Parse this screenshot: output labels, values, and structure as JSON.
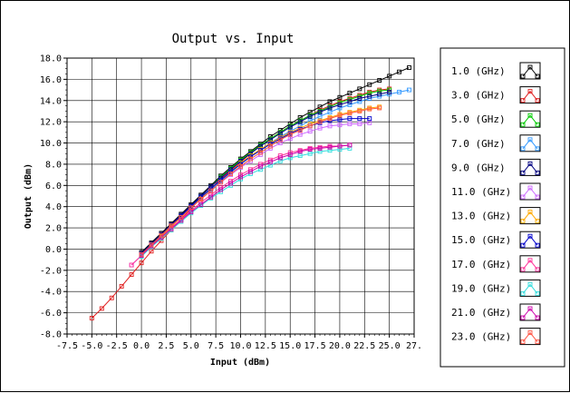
{
  "chart_data": {
    "type": "line",
    "title": "Output vs. Input",
    "xlabel": "Input (dBm)",
    "ylabel": "Output (dBm)",
    "xlim": [
      -7.5,
      27.5
    ],
    "ylim": [
      -8.0,
      18.0
    ],
    "grid": true,
    "legend_position": "right",
    "x_ticks": [
      "-7.5",
      "-5.0",
      "-2.5",
      "0.0",
      "2.5",
      "5.0",
      "7.5",
      "10.0",
      "12.5",
      "15.0",
      "17.5",
      "20.0",
      "22.5",
      "25.0",
      "27."
    ],
    "y_ticks": [
      "18.0",
      "16.0",
      "14.0",
      "12.0",
      "10.0",
      "8.0",
      "6.0",
      "4.0",
      "2.0",
      "0.0",
      "-2.0",
      "-4.0",
      "-6.0",
      "-8.0"
    ],
    "series": [
      {
        "name": "1.0 (GHz)",
        "color": "#000000",
        "x": [
          0,
          1,
          2,
          3,
          4,
          5,
          6,
          7,
          8,
          9,
          10,
          11,
          12,
          13,
          14,
          15,
          16,
          17,
          18,
          19,
          20,
          21,
          22,
          23,
          24,
          25,
          26,
          27
        ],
        "y": [
          -0.3,
          0.6,
          1.5,
          2.4,
          3.3,
          4.2,
          5.1,
          6.0,
          6.9,
          7.7,
          8.5,
          9.2,
          9.9,
          10.6,
          11.2,
          11.8,
          12.4,
          12.9,
          13.4,
          13.9,
          14.3,
          14.7,
          15.1,
          15.5,
          15.9,
          16.3,
          16.7,
          17.1
        ]
      },
      {
        "name": "3.0 (GHz)",
        "color": "#e02020",
        "x": [
          -5,
          -4,
          -3,
          -2,
          -1,
          0,
          1,
          2,
          3,
          4,
          5,
          6,
          7,
          8,
          9,
          10,
          11,
          12,
          13,
          14,
          15,
          16,
          17,
          18,
          19,
          20,
          21,
          22,
          23,
          24,
          25
        ],
        "y": [
          -6.5,
          -5.6,
          -4.6,
          -3.5,
          -2.4,
          -1.3,
          -0.2,
          0.8,
          1.8,
          2.8,
          3.8,
          4.8,
          5.7,
          6.6,
          7.4,
          8.2,
          9.0,
          9.7,
          10.4,
          11.0,
          11.6,
          12.1,
          12.6,
          13.1,
          13.5,
          13.9,
          14.2,
          14.5,
          14.8,
          15.0,
          15.1
        ]
      },
      {
        "name": "5.0 (GHz)",
        "color": "#00cc00",
        "x": [
          0,
          1,
          2,
          3,
          4,
          5,
          6,
          7,
          8,
          9,
          10,
          11,
          12,
          13,
          14,
          15,
          16,
          17,
          18,
          19,
          20,
          21,
          22,
          23,
          24,
          25
        ],
        "y": [
          -0.5,
          0.4,
          1.3,
          2.2,
          3.2,
          4.1,
          5.0,
          5.9,
          6.8,
          7.6,
          8.4,
          9.1,
          9.8,
          10.4,
          11.0,
          11.6,
          12.1,
          12.6,
          13.0,
          13.4,
          13.8,
          14.1,
          14.4,
          14.7,
          14.9,
          15.0
        ]
      },
      {
        "name": "7.0 (GHz)",
        "color": "#3399ff",
        "x": [
          0,
          1,
          2,
          3,
          4,
          5,
          6,
          7,
          8,
          9,
          10,
          11,
          12,
          13,
          14,
          15,
          16,
          17,
          18,
          19,
          20,
          21,
          22,
          23,
          24,
          25,
          26,
          27
        ],
        "y": [
          -0.6,
          0.3,
          1.2,
          2.1,
          3.0,
          3.9,
          4.8,
          5.6,
          6.4,
          7.2,
          8.0,
          8.7,
          9.4,
          10.0,
          10.6,
          11.1,
          11.6,
          12.1,
          12.5,
          12.9,
          13.3,
          13.6,
          13.9,
          14.2,
          14.4,
          14.6,
          14.8,
          15.0
        ]
      },
      {
        "name": "9.0 (GHz)",
        "color": "#000080",
        "x": [
          0,
          1,
          2,
          3,
          4,
          5,
          6,
          7,
          8,
          9,
          10,
          11,
          12,
          13,
          14,
          15,
          16,
          17,
          18,
          19,
          20,
          21,
          22,
          23,
          24,
          25
        ],
        "y": [
          -0.4,
          0.5,
          1.4,
          2.3,
          3.2,
          4.1,
          5.0,
          5.9,
          6.7,
          7.5,
          8.3,
          9.0,
          9.7,
          10.3,
          10.9,
          11.5,
          12.0,
          12.5,
          12.9,
          13.3,
          13.6,
          13.9,
          14.2,
          14.4,
          14.6,
          14.8
        ]
      },
      {
        "name": "11.0 (GHz)",
        "color": "#cc66ff",
        "x": [
          -1,
          0,
          1,
          2,
          3,
          4,
          5,
          6,
          7,
          8,
          9,
          10,
          11,
          12,
          13,
          14,
          15,
          16,
          17,
          18,
          19,
          20,
          21,
          22,
          23
        ],
        "y": [
          -1.5,
          -0.6,
          0.3,
          1.2,
          2.1,
          3.0,
          3.9,
          4.7,
          5.5,
          6.3,
          7.0,
          7.7,
          8.3,
          8.9,
          9.5,
          10.0,
          10.4,
          10.8,
          11.1,
          11.4,
          11.6,
          11.7,
          11.8,
          11.8,
          11.9
        ]
      },
      {
        "name": "13.0 (GHz)",
        "color": "#ffaa00",
        "x": [
          0,
          1,
          2,
          3,
          4,
          5,
          6,
          7,
          8,
          9,
          10,
          11,
          12,
          13,
          14,
          15,
          16,
          17,
          18,
          19,
          20,
          21,
          22,
          23,
          24
        ],
        "y": [
          -0.6,
          0.3,
          1.2,
          2.1,
          3.0,
          3.9,
          4.8,
          5.7,
          6.5,
          7.3,
          8.1,
          8.8,
          9.4,
          10.0,
          10.5,
          11.0,
          11.4,
          11.8,
          12.1,
          12.4,
          12.7,
          12.9,
          13.1,
          13.3,
          13.4
        ]
      },
      {
        "name": "15.0 (GHz)",
        "color": "#0000cc",
        "x": [
          0,
          1,
          2,
          3,
          4,
          5,
          6,
          7,
          8,
          9,
          10,
          11,
          12,
          13,
          14,
          15,
          16,
          17,
          18,
          19,
          20,
          21,
          22,
          23
        ],
        "y": [
          -0.5,
          0.4,
          1.3,
          2.2,
          3.1,
          4.0,
          4.9,
          5.7,
          6.5,
          7.3,
          8.0,
          8.7,
          9.3,
          9.9,
          10.4,
          10.9,
          11.3,
          11.6,
          11.9,
          12.1,
          12.2,
          12.3,
          12.3,
          12.3
        ]
      },
      {
        "name": "17.0 (GHz)",
        "color": "#ff3399",
        "x": [
          -1,
          0,
          1,
          2,
          3,
          4,
          5,
          6,
          7,
          8,
          9,
          10,
          11,
          12,
          13,
          14,
          15,
          16,
          17,
          18,
          19,
          20,
          21
        ],
        "y": [
          -1.5,
          -0.6,
          0.3,
          1.1,
          2.0,
          2.8,
          3.6,
          4.4,
          5.1,
          5.8,
          6.4,
          7.0,
          7.5,
          8.0,
          8.4,
          8.8,
          9.1,
          9.3,
          9.5,
          9.6,
          9.7,
          9.7,
          9.8
        ]
      },
      {
        "name": "19.0 (GHz)",
        "color": "#33dddd",
        "x": [
          0,
          1,
          2,
          3,
          4,
          5,
          6,
          7,
          8,
          9,
          10,
          11,
          12,
          13,
          14,
          15,
          16,
          17,
          18,
          19,
          20,
          21
        ],
        "y": [
          -0.7,
          0.2,
          1.0,
          1.8,
          2.6,
          3.4,
          4.1,
          4.8,
          5.4,
          6.0,
          6.6,
          7.1,
          7.5,
          7.9,
          8.3,
          8.6,
          8.8,
          9.0,
          9.2,
          9.3,
          9.4,
          9.5
        ]
      },
      {
        "name": "21.0 (GHz)",
        "color": "#cc00aa",
        "x": [
          0,
          1,
          2,
          3,
          4,
          5,
          6,
          7,
          8,
          9,
          10,
          11,
          12,
          13,
          14,
          15,
          16,
          17,
          18,
          19,
          20,
          21
        ],
        "y": [
          -0.6,
          0.3,
          1.1,
          1.9,
          2.7,
          3.5,
          4.2,
          4.9,
          5.6,
          6.2,
          6.8,
          7.3,
          7.8,
          8.2,
          8.6,
          8.9,
          9.2,
          9.4,
          9.5,
          9.6,
          9.7,
          9.8
        ]
      },
      {
        "name": "23.0 (GHz)",
        "color": "#ff5544",
        "x": [
          0,
          1,
          2,
          3,
          4,
          5,
          6,
          7,
          8,
          9,
          10,
          11,
          12,
          13,
          14,
          15,
          16,
          17,
          18,
          19,
          20,
          21,
          22,
          23,
          24
        ],
        "y": [
          -0.5,
          0.4,
          1.3,
          2.2,
          3.0,
          3.9,
          4.7,
          5.5,
          6.3,
          7.1,
          7.8,
          8.5,
          9.1,
          9.7,
          10.3,
          10.8,
          11.2,
          11.6,
          12.0,
          12.3,
          12.6,
          12.8,
          13.0,
          13.2,
          13.3
        ]
      }
    ]
  }
}
